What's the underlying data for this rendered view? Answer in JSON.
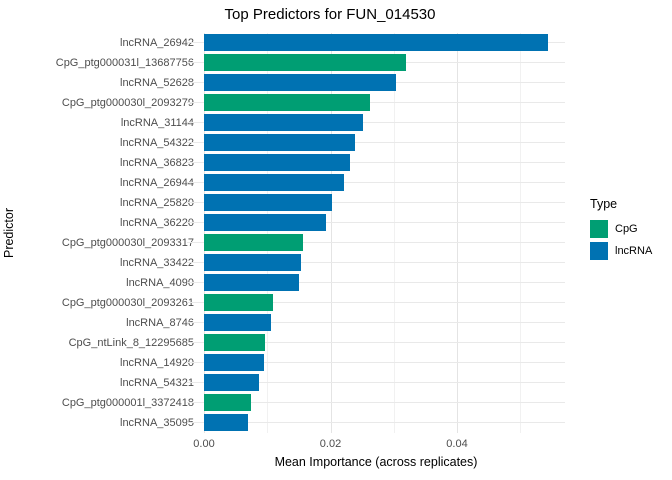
{
  "chart_data": {
    "type": "bar",
    "orientation": "horizontal",
    "title": "Top Predictors for FUN_014530",
    "xlabel": "Mean Importance (across replicates)",
    "ylabel": "Predictor",
    "xlim": [
      0,
      0.0571
    ],
    "x_ticks": [
      {
        "value": 0.0,
        "label": "0.00"
      },
      {
        "value": 0.02,
        "label": "0.02"
      },
      {
        "value": 0.04,
        "label": "0.04"
      }
    ],
    "grid_minor": [
      0.01,
      0.03,
      0.05
    ],
    "grid": true,
    "legend": {
      "title": "Type",
      "position": "right",
      "entries": [
        {
          "label": "CpG",
          "color": "#009E73"
        },
        {
          "label": "lncRNA",
          "color": "#0072B2"
        }
      ]
    },
    "colors": {
      "CpG": "#009E73",
      "lncRNA": "#0072B2"
    },
    "bars": [
      {
        "label": "lncRNA_26942",
        "type": "lncRNA",
        "value": 0.0544
      },
      {
        "label": "CpG_ptg000031l_13687756",
        "type": "CpG",
        "value": 0.0319
      },
      {
        "label": "lncRNA_52628",
        "type": "lncRNA",
        "value": 0.0304
      },
      {
        "label": "CpG_ptg000030l_2093279",
        "type": "CpG",
        "value": 0.0262
      },
      {
        "label": "lncRNA_31144",
        "type": "lncRNA",
        "value": 0.0251
      },
      {
        "label": "lncRNA_54322",
        "type": "lncRNA",
        "value": 0.0239
      },
      {
        "label": "lncRNA_36823",
        "type": "lncRNA",
        "value": 0.0231
      },
      {
        "label": "lncRNA_26944",
        "type": "lncRNA",
        "value": 0.0221
      },
      {
        "label": "lncRNA_25820",
        "type": "lncRNA",
        "value": 0.0202
      },
      {
        "label": "lncRNA_36220",
        "type": "lncRNA",
        "value": 0.0193
      },
      {
        "label": "CpG_ptg000030l_2093317",
        "type": "CpG",
        "value": 0.0157
      },
      {
        "label": "lncRNA_33422",
        "type": "lncRNA",
        "value": 0.0153
      },
      {
        "label": "lncRNA_4090",
        "type": "lncRNA",
        "value": 0.015
      },
      {
        "label": "CpG_ptg000030l_2093261",
        "type": "CpG",
        "value": 0.0109
      },
      {
        "label": "lncRNA_8746",
        "type": "lncRNA",
        "value": 0.0106
      },
      {
        "label": "CpG_ntLink_8_12295685",
        "type": "CpG",
        "value": 0.0096
      },
      {
        "label": "lncRNA_14920",
        "type": "lncRNA",
        "value": 0.0095
      },
      {
        "label": "lncRNA_54321",
        "type": "lncRNA",
        "value": 0.0087
      },
      {
        "label": "CpG_ptg000001l_3372418",
        "type": "CpG",
        "value": 0.0074
      },
      {
        "label": "lncRNA_35095",
        "type": "lncRNA",
        "value": 0.007
      }
    ]
  }
}
